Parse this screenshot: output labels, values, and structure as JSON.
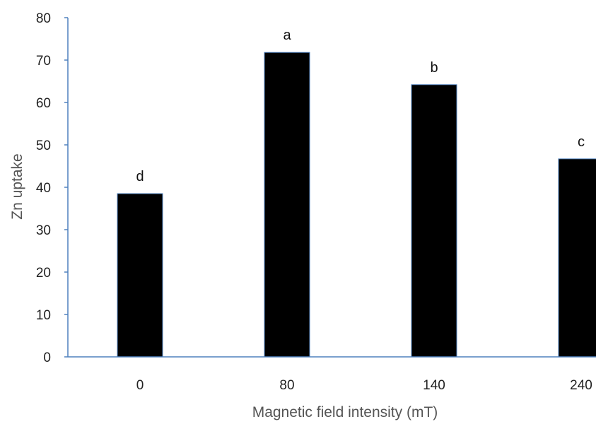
{
  "chart_data": {
    "type": "bar",
    "categories": [
      "0",
      "80",
      "140",
      "240"
    ],
    "values": [
      38.5,
      71.8,
      64.2,
      46.7
    ],
    "data_labels": [
      "d",
      "a",
      "b",
      "c"
    ],
    "xlabel": "Magnetic field intensity (mT)",
    "ylabel": "Zn uptake",
    "ylim": [
      0,
      80
    ],
    "yticks": [
      0,
      10,
      20,
      30,
      40,
      50,
      60,
      70,
      80
    ],
    "grid": false,
    "legend": "none",
    "colors": {
      "bar_fill": "#000000",
      "bar_edge": "#4f81bd",
      "axis": "#4f81bd"
    }
  }
}
